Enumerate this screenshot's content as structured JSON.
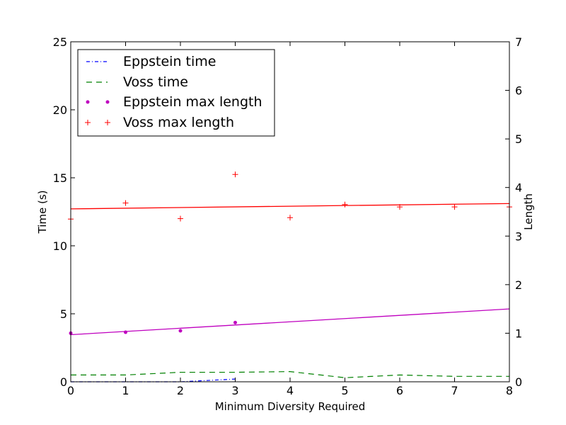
{
  "chart_data": {
    "type": "line",
    "xlabel": "Minimum Diversity Required",
    "ylabel_left": "Time (s)",
    "ylabel_right": "Length",
    "xlim": [
      0,
      8
    ],
    "ylim_left": [
      0,
      25
    ],
    "ylim_right": [
      0,
      7
    ],
    "x_ticks": [
      "0",
      "1",
      "2",
      "3",
      "4",
      "5",
      "6",
      "7",
      "8"
    ],
    "y_ticks_left": [
      "0",
      "5",
      "10",
      "15",
      "20",
      "25"
    ],
    "y_ticks_right": [
      "0",
      "1",
      "2",
      "3",
      "4",
      "5",
      "6",
      "7"
    ],
    "grid": false,
    "legend_position": "upper-left",
    "series": [
      {
        "name": "Eppstein time",
        "axis": "left",
        "style": "dashdot-line",
        "color": "#0000ff",
        "x": [
          0,
          1,
          2,
          3
        ],
        "values": [
          0.0,
          0.0,
          0.0,
          0.2
        ]
      },
      {
        "name": "Voss time",
        "axis": "left",
        "style": "dashed-line",
        "color": "#008000",
        "x": [
          0,
          1,
          2,
          3,
          4,
          5,
          6,
          7,
          8
        ],
        "values": [
          0.5,
          0.5,
          0.7,
          0.7,
          0.75,
          0.3,
          0.5,
          0.4,
          0.4
        ]
      },
      {
        "name": "Eppstein max length",
        "axis": "right",
        "style": "dot-markers",
        "color": "#bf00bf",
        "x": [
          0,
          1,
          2,
          3
        ],
        "values": [
          1.0,
          1.02,
          1.05,
          1.22
        ]
      },
      {
        "name": "Voss max length",
        "axis": "right",
        "style": "plus-markers",
        "color": "#ff0000",
        "x": [
          0,
          1,
          2,
          3,
          4,
          5,
          6,
          7,
          8
        ],
        "values": [
          3.35,
          3.68,
          3.36,
          4.27,
          3.38,
          3.65,
          3.6,
          3.6,
          3.6
        ]
      }
    ],
    "trend_lines": [
      {
        "series": "Eppstein max length",
        "axis": "right",
        "color": "#bf00bf",
        "x": [
          0,
          8
        ],
        "values": [
          0.97,
          1.5
        ]
      },
      {
        "series": "Voss max length",
        "axis": "right",
        "color": "#ff0000",
        "x": [
          0,
          8
        ],
        "values": [
          3.56,
          3.67
        ]
      }
    ]
  }
}
